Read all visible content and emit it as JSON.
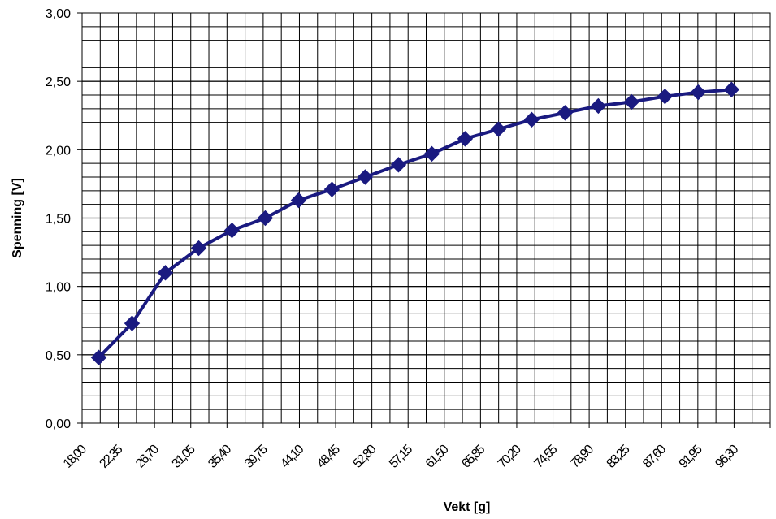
{
  "chart_data": {
    "type": "line",
    "xlabel": "Vekt [g]",
    "ylabel": "Spenning [V]",
    "ylim": [
      0,
      3
    ],
    "y_major_step": 0.5,
    "y_minor_step": 0.1,
    "y_tick_labels": [
      "0,00",
      "0,50",
      "1,00",
      "1,50",
      "2,00",
      "2,50",
      "3,00"
    ],
    "x_tick_labels": [
      "18,00",
      "22,35",
      "26,70",
      "31,05",
      "35,40",
      "39,75",
      "44,10",
      "48,45",
      "52,80",
      "57,15",
      "61,50",
      "65,85",
      "70,20",
      "74,55",
      "78,90",
      "83,25",
      "87,60",
      "91,95",
      "96,30"
    ],
    "grid": true,
    "legend": "none",
    "series": [
      {
        "color": "#1a1a80",
        "marker": "diamond",
        "x": [
          20,
          24,
          28,
          32,
          36,
          40,
          44,
          48,
          52,
          56,
          60,
          64,
          68,
          72,
          76,
          80,
          84,
          88,
          92,
          96
        ],
        "values": [
          0.48,
          0.73,
          1.1,
          1.28,
          1.41,
          1.5,
          1.63,
          1.71,
          1.8,
          1.89,
          1.97,
          2.08,
          2.15,
          2.22,
          2.27,
          2.32,
          2.35,
          2.39,
          2.42,
          2.44
        ]
      }
    ]
  }
}
